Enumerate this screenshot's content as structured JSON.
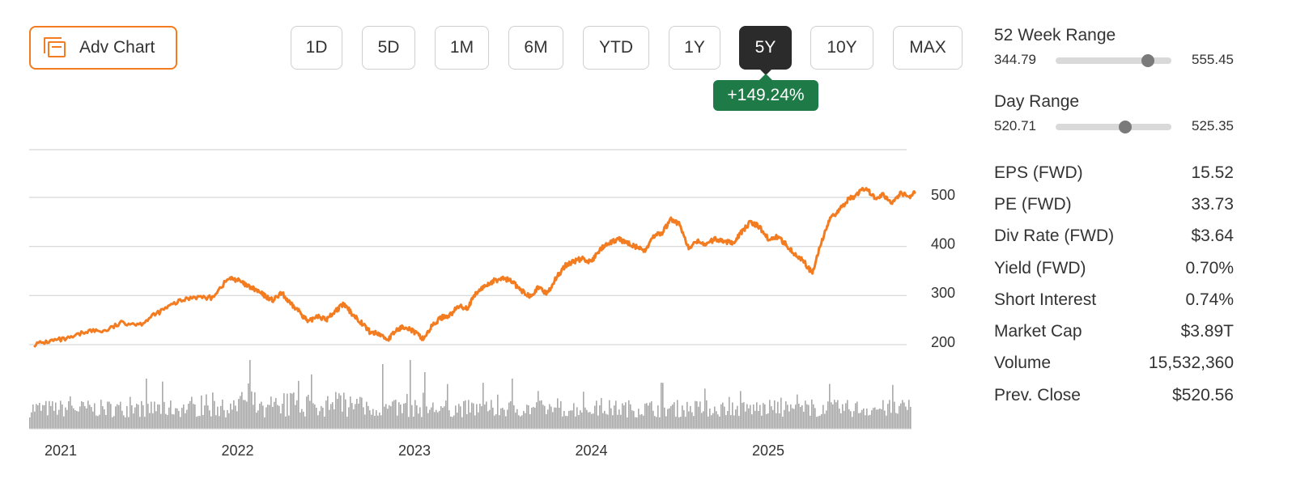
{
  "toolbar": {
    "adv_chart_label": "Adv Chart",
    "ranges": [
      "1D",
      "5D",
      "1M",
      "6M",
      "YTD",
      "1Y",
      "5Y",
      "10Y",
      "MAX"
    ],
    "active_range": "5Y",
    "change_label": "+149.24%"
  },
  "colors": {
    "accent": "#f37b20",
    "price_line": "#f37b20",
    "volume": "#a8a8a8",
    "badge": "#1e7a47",
    "active_tab": "#2b2b2b"
  },
  "chart_data": {
    "type": "line",
    "x_ticks": [
      "2021",
      "2022",
      "2023",
      "2024",
      "2025"
    ],
    "y_ticks": [
      200,
      300,
      400,
      500
    ],
    "ylim": [
      180,
      580
    ],
    "grid": true,
    "y_axis_position": "right",
    "series": [
      {
        "values": [
          [
            2020.85,
            200
          ],
          [
            2020.95,
            208
          ],
          [
            2021.05,
            212
          ],
          [
            2021.15,
            228
          ],
          [
            2021.25,
            228
          ],
          [
            2021.35,
            245
          ],
          [
            2021.45,
            242
          ],
          [
            2021.55,
            265
          ],
          [
            2021.65,
            285
          ],
          [
            2021.75,
            298
          ],
          [
            2021.85,
            295
          ],
          [
            2021.95,
            335
          ],
          [
            2022.0,
            332
          ],
          [
            2022.05,
            320
          ],
          [
            2022.1,
            312
          ],
          [
            2022.15,
            300
          ],
          [
            2022.2,
            290
          ],
          [
            2022.25,
            305
          ],
          [
            2022.3,
            282
          ],
          [
            2022.35,
            268
          ],
          [
            2022.4,
            245
          ],
          [
            2022.45,
            260
          ],
          [
            2022.5,
            250
          ],
          [
            2022.55,
            268
          ],
          [
            2022.6,
            282
          ],
          [
            2022.65,
            262
          ],
          [
            2022.7,
            245
          ],
          [
            2022.75,
            225
          ],
          [
            2022.8,
            222
          ],
          [
            2022.85,
            210
          ],
          [
            2022.9,
            230
          ],
          [
            2022.95,
            238
          ],
          [
            2023.0,
            225
          ],
          [
            2023.05,
            212
          ],
          [
            2023.1,
            238
          ],
          [
            2023.15,
            255
          ],
          [
            2023.2,
            260
          ],
          [
            2023.25,
            278
          ],
          [
            2023.3,
            275
          ],
          [
            2023.35,
            305
          ],
          [
            2023.4,
            320
          ],
          [
            2023.45,
            330
          ],
          [
            2023.5,
            335
          ],
          [
            2023.55,
            330
          ],
          [
            2023.6,
            310
          ],
          [
            2023.65,
            300
          ],
          [
            2023.7,
            315
          ],
          [
            2023.75,
            305
          ],
          [
            2023.8,
            335
          ],
          [
            2023.85,
            360
          ],
          [
            2023.9,
            370
          ],
          [
            2023.95,
            375
          ],
          [
            2024.0,
            368
          ],
          [
            2024.05,
            395
          ],
          [
            2024.1,
            405
          ],
          [
            2024.15,
            415
          ],
          [
            2024.2,
            408
          ],
          [
            2024.25,
            400
          ],
          [
            2024.3,
            390
          ],
          [
            2024.35,
            420
          ],
          [
            2024.4,
            428
          ],
          [
            2024.45,
            455
          ],
          [
            2024.5,
            445
          ],
          [
            2024.55,
            395
          ],
          [
            2024.6,
            410
          ],
          [
            2024.65,
            405
          ],
          [
            2024.7,
            415
          ],
          [
            2024.75,
            410
          ],
          [
            2024.8,
            408
          ],
          [
            2024.85,
            430
          ],
          [
            2024.9,
            450
          ],
          [
            2024.95,
            440
          ],
          [
            2025.0,
            415
          ],
          [
            2025.05,
            420
          ],
          [
            2025.1,
            405
          ],
          [
            2025.15,
            385
          ],
          [
            2025.2,
            370
          ],
          [
            2025.25,
            345
          ],
          [
            2025.3,
            410
          ],
          [
            2025.35,
            455
          ],
          [
            2025.4,
            475
          ],
          [
            2025.45,
            495
          ],
          [
            2025.5,
            505
          ],
          [
            2025.55,
            520
          ],
          [
            2025.6,
            500
          ],
          [
            2025.65,
            505
          ],
          [
            2025.7,
            490
          ],
          [
            2025.75,
            510
          ],
          [
            2025.8,
            500
          ],
          [
            2025.83,
            512
          ]
        ]
      }
    ],
    "volume": {
      "color": "#a8a8a8",
      "shape": "bars"
    }
  },
  "stats": {
    "week52": {
      "title": "52 Week Range",
      "low": "344.79",
      "high": "555.45",
      "position": 0.8
    },
    "day": {
      "title": "Day Range",
      "low": "520.71",
      "high": "525.35",
      "position": 0.6
    },
    "rows": [
      {
        "label": "EPS (FWD)",
        "value": "15.52"
      },
      {
        "label": "PE (FWD)",
        "value": "33.73"
      },
      {
        "label": "Div Rate (FWD)",
        "value": "$3.64"
      },
      {
        "label": "Yield (FWD)",
        "value": "0.70%"
      },
      {
        "label": "Short Interest",
        "value": "0.74%"
      },
      {
        "label": "Market Cap",
        "value": "$3.89T"
      },
      {
        "label": "Volume",
        "value": "15,532,360"
      },
      {
        "label": "Prev. Close",
        "value": "$520.56"
      }
    ]
  }
}
